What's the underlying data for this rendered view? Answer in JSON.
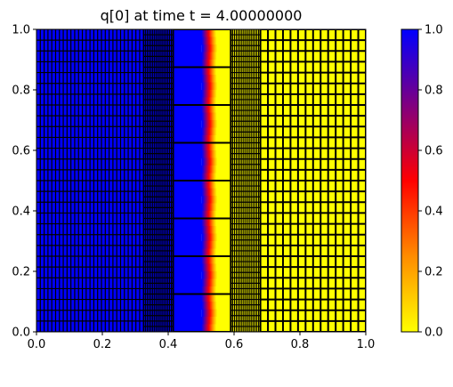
{
  "chart_data": {
    "type": "heatmap",
    "title": "q[0] at time t =     4.00000000",
    "xlabel": "",
    "ylabel": "",
    "xlim": [
      0.0,
      1.0
    ],
    "ylim": [
      0.0,
      1.0
    ],
    "x_ticks": [
      "0.0",
      "0.2",
      "0.4",
      "0.6",
      "0.8",
      "1.0"
    ],
    "y_ticks": [
      "0.0",
      "0.2",
      "0.4",
      "0.6",
      "0.8",
      "1.0"
    ],
    "colorbar": {
      "range": [
        0.0,
        1.0
      ],
      "ticks": [
        "0.0",
        "0.2",
        "0.4",
        "0.6",
        "0.8",
        "1.0"
      ],
      "colormap": [
        "#ffff00",
        "#ff8c00",
        "#ff0000",
        "#800080",
        "#0000ff"
      ]
    },
    "field": {
      "left_state": 1.0,
      "right_state": 0.0,
      "front_start_x": 0.5,
      "front_end_x": 0.545,
      "front_curvature_x": 0.008
    },
    "grid_patches": [
      {
        "x": [
          0.0,
          0.325
        ],
        "y": [
          0.0,
          1.0
        ],
        "cells_x": 28,
        "cells_y": 28
      },
      {
        "x": [
          0.325,
          0.415
        ],
        "y": [
          0.0,
          1.0
        ],
        "cells_x": 16,
        "cells_y": 56
      },
      {
        "x": [
          0.415,
          0.59
        ],
        "y": [
          0.0,
          1.0
        ],
        "cells_x": 1,
        "cells_y": 8
      },
      {
        "x": [
          0.59,
          0.68
        ],
        "y": [
          0.0,
          1.0
        ],
        "cells_x": 16,
        "cells_y": 56
      },
      {
        "x": [
          0.68,
          1.0
        ],
        "y": [
          0.0,
          1.0
        ],
        "cells_x": 14,
        "cells_y": 28
      }
    ]
  }
}
